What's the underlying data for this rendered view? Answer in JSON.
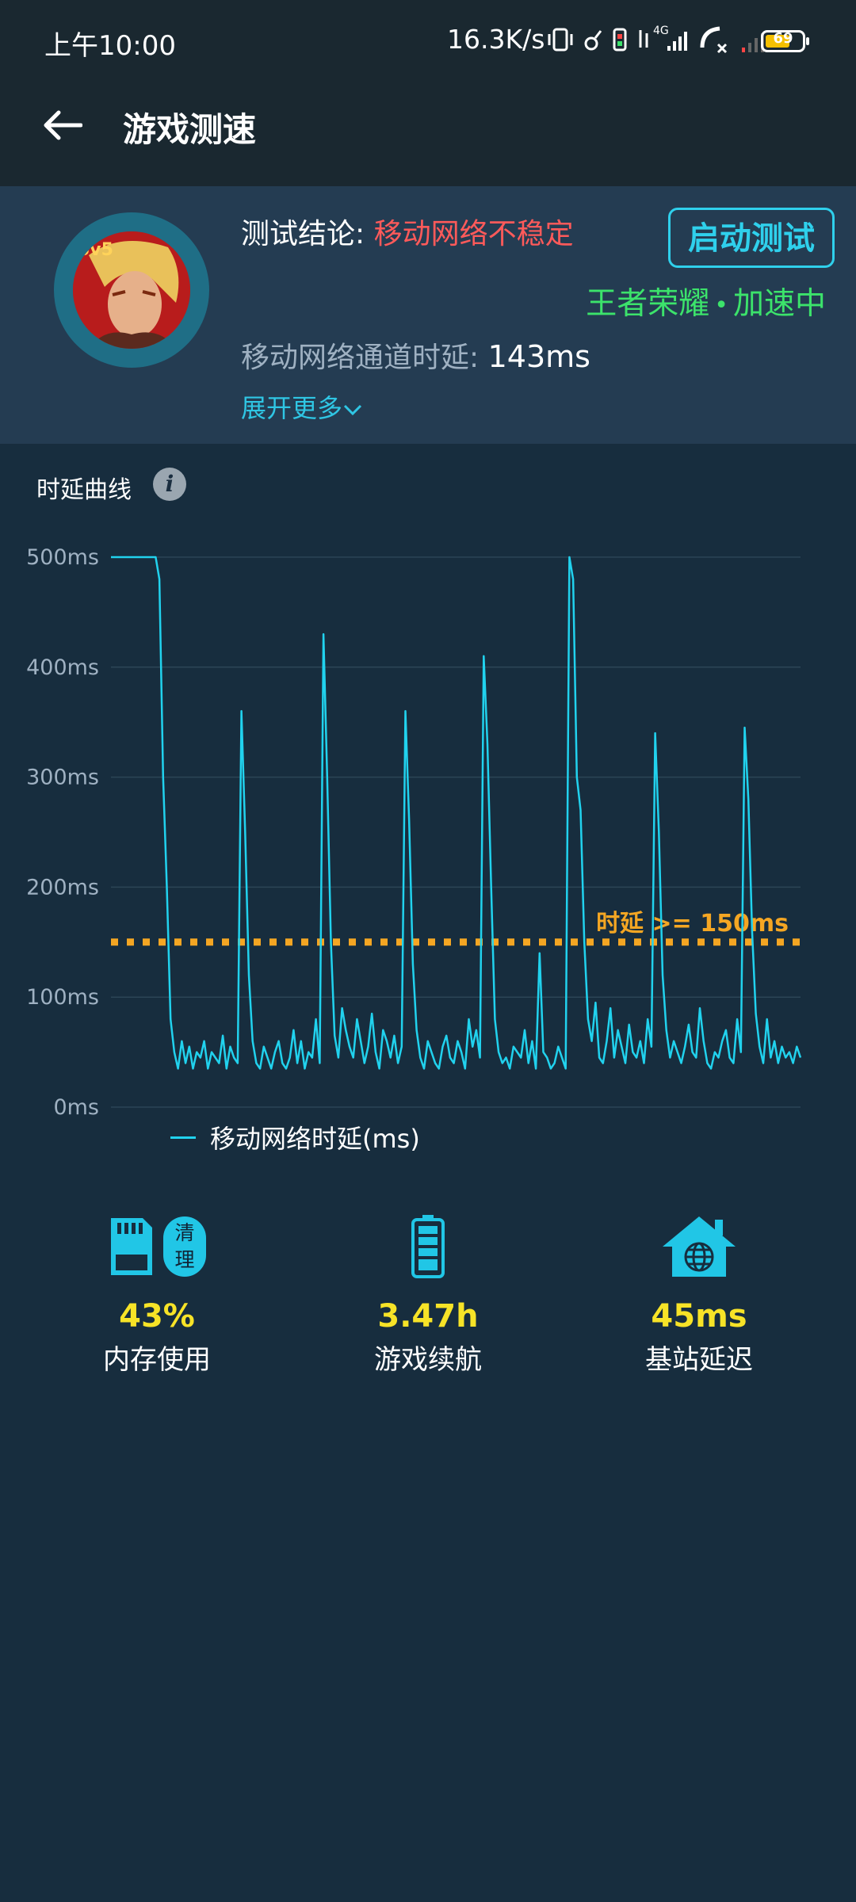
{
  "status_bar": {
    "time": "上午10:00",
    "net_speed": "16.3K/s",
    "network_type": "4G",
    "battery_level": "69",
    "battery_fraction": 0.69,
    "icons": [
      "vibrate-icon",
      "alarm-icon",
      "sim-icon",
      "signal-4g-icon",
      "call-icon",
      "signal-weak-icon",
      "battery-icon"
    ]
  },
  "header": {
    "title": "游戏测速"
  },
  "summary": {
    "conclusion_label": "测试结论:",
    "conclusion_value": "移动网络不稳定",
    "start_button": "启动测试",
    "game_name": "王者荣耀",
    "dot": "•",
    "game_state": "加速中",
    "delay_label": "移动网络通道时延:",
    "delay_value": "143ms",
    "expand_link": "展开更多",
    "avatar_badge": "5v5"
  },
  "chart_section": {
    "title": "时延曲线",
    "info_icon": "i"
  },
  "chart_data": {
    "type": "line",
    "title": "",
    "xlabel": "",
    "ylabel": "",
    "ylim": [
      0,
      500
    ],
    "y_ticks": [
      "0ms",
      "100ms",
      "200ms",
      "300ms",
      "400ms",
      "500ms"
    ],
    "grid": true,
    "legend_position": "bottom-left",
    "threshold": {
      "value": 150,
      "label": "时延 >= 150ms",
      "color": "#f4a623"
    },
    "series": [
      {
        "name": "移动网络时延(ms)",
        "color": "#21d2ee",
        "values": [
          500,
          500,
          500,
          500,
          500,
          500,
          500,
          500,
          500,
          500,
          500,
          500,
          500,
          480,
          300,
          200,
          80,
          50,
          35,
          60,
          40,
          55,
          35,
          50,
          45,
          60,
          35,
          50,
          45,
          40,
          65,
          35,
          55,
          45,
          40,
          360,
          250,
          120,
          60,
          40,
          35,
          55,
          45,
          35,
          50,
          60,
          40,
          35,
          45,
          70,
          40,
          60,
          35,
          50,
          45,
          80,
          40,
          430,
          300,
          150,
          65,
          45,
          90,
          70,
          55,
          45,
          80,
          60,
          40,
          55,
          85,
          50,
          35,
          70,
          60,
          45,
          65,
          40,
          55,
          360,
          260,
          130,
          70,
          45,
          35,
          60,
          50,
          40,
          35,
          55,
          65,
          45,
          40,
          60,
          50,
          35,
          80,
          55,
          70,
          45,
          410,
          330,
          200,
          80,
          50,
          40,
          45,
          35,
          55,
          50,
          45,
          70,
          40,
          60,
          35,
          140,
          50,
          45,
          35,
          40,
          55,
          45,
          35,
          500,
          480,
          300,
          270,
          150,
          80,
          60,
          95,
          45,
          40,
          60,
          90,
          45,
          70,
          55,
          40,
          75,
          50,
          45,
          60,
          40,
          80,
          55,
          340,
          250,
          120,
          70,
          45,
          60,
          50,
          40,
          55,
          75,
          50,
          45,
          90,
          60,
          40,
          35,
          50,
          45,
          60,
          70,
          45,
          40,
          80,
          50,
          345,
          280,
          160,
          85,
          55,
          40,
          80,
          45,
          60,
          40,
          55,
          45,
          50,
          40,
          55,
          45
        ]
      }
    ]
  },
  "stats": [
    {
      "value": "43%",
      "label": "内存使用",
      "badge": "清 理",
      "icon": "sd-card-icon"
    },
    {
      "value": "3.47h",
      "label": "游戏续航",
      "icon": "battery-icon"
    },
    {
      "value": "45ms",
      "label": "基站延迟",
      "icon": "house-globe-icon"
    }
  ],
  "colors": {
    "background": "#172d3e",
    "panel": "#243c52",
    "accent": "#21d2ee",
    "warning": "#f4a623",
    "bad": "#ff5a5a",
    "good": "#3ce36b",
    "stat_value": "#f7e327"
  }
}
